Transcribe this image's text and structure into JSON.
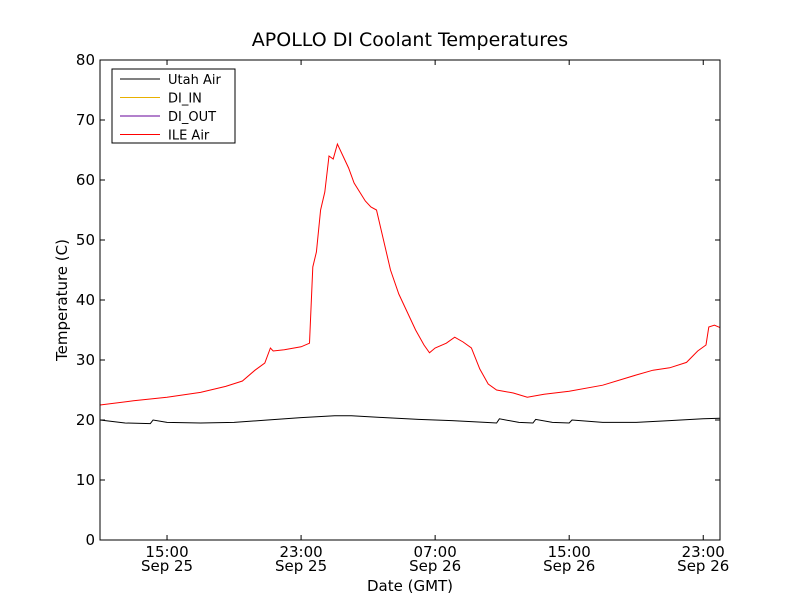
{
  "chart_data": {
    "type": "line",
    "title": "APOLLO DI Coolant Temperatures",
    "xlabel": "Date (GMT)",
    "ylabel": "Temperature (C)",
    "xlim": [
      "2011-09-25 11:00",
      "2011-09-27 00:00"
    ],
    "ylim": [
      0,
      80
    ],
    "grid": false,
    "legend_position": "top-left",
    "y_ticks": [
      0,
      10,
      20,
      30,
      40,
      50,
      60,
      70,
      80
    ],
    "x_ticks": [
      {
        "t": "2011-09-25 15:00",
        "line1": "15:00",
        "line2": "Sep 25"
      },
      {
        "t": "2011-09-25 23:00",
        "line1": "23:00",
        "line2": "Sep 25"
      },
      {
        "t": "2011-09-26 07:00",
        "line1": "07:00",
        "line2": "Sep 26"
      },
      {
        "t": "2011-09-26 15:00",
        "line1": "15:00",
        "line2": "Sep 26"
      },
      {
        "t": "2011-09-26 23:00",
        "line1": "23:00",
        "line2": "Sep 26"
      }
    ],
    "series": [
      {
        "name": "Utah Air",
        "color": "#000000",
        "points": [
          [
            "2011-09-25 11:00",
            20.0
          ],
          [
            "2011-09-25 12:30",
            19.5
          ],
          [
            "2011-09-25 14:00",
            19.4
          ],
          [
            "2011-09-25 14:10",
            20.0
          ],
          [
            "2011-09-25 15:00",
            19.6
          ],
          [
            "2011-09-25 17:00",
            19.5
          ],
          [
            "2011-09-25 19:00",
            19.6
          ],
          [
            "2011-09-25 21:00",
            20.0
          ],
          [
            "2011-09-25 23:00",
            20.4
          ],
          [
            "2011-09-26 01:00",
            20.7
          ],
          [
            "2011-09-26 02:00",
            20.7
          ],
          [
            "2011-09-26 04:00",
            20.4
          ],
          [
            "2011-09-26 06:00",
            20.1
          ],
          [
            "2011-09-26 08:00",
            19.9
          ],
          [
            "2011-09-26 10:00",
            19.6
          ],
          [
            "2011-09-26 10:40",
            19.5
          ],
          [
            "2011-09-26 10:50",
            20.2
          ],
          [
            "2011-09-26 12:00",
            19.6
          ],
          [
            "2011-09-26 12:50",
            19.5
          ],
          [
            "2011-09-26 13:00",
            20.1
          ],
          [
            "2011-09-26 14:00",
            19.6
          ],
          [
            "2011-09-26 15:00",
            19.5
          ],
          [
            "2011-09-26 15:10",
            20.0
          ],
          [
            "2011-09-26 17:00",
            19.6
          ],
          [
            "2011-09-26 19:00",
            19.6
          ],
          [
            "2011-09-26 21:00",
            19.9
          ],
          [
            "2011-09-26 23:00",
            20.2
          ],
          [
            "2011-09-27 00:00",
            20.3
          ]
        ]
      },
      {
        "name": "DI_IN",
        "color": "#e8b000",
        "points": []
      },
      {
        "name": "DI_OUT",
        "color": "#660099",
        "points": []
      },
      {
        "name": "ILE Air",
        "color": "#ff0000",
        "points": [
          [
            "2011-09-25 11:00",
            22.5
          ],
          [
            "2011-09-25 13:00",
            23.2
          ],
          [
            "2011-09-25 15:00",
            23.8
          ],
          [
            "2011-09-25 17:00",
            24.6
          ],
          [
            "2011-09-25 18:30",
            25.6
          ],
          [
            "2011-09-25 19:30",
            26.5
          ],
          [
            "2011-09-25 20:15",
            28.3
          ],
          [
            "2011-09-25 20:50",
            29.5
          ],
          [
            "2011-09-25 21:10",
            32.0
          ],
          [
            "2011-09-25 21:20",
            31.5
          ],
          [
            "2011-09-25 22:00",
            31.7
          ],
          [
            "2011-09-25 23:00",
            32.2
          ],
          [
            "2011-09-25 23:30",
            32.8
          ],
          [
            "2011-09-25 23:42",
            45.5
          ],
          [
            "2011-09-25 23:55",
            48.0
          ],
          [
            "2011-09-26 00:10",
            55.0
          ],
          [
            "2011-09-26 00:25",
            58.0
          ],
          [
            "2011-09-26 00:40",
            64.0
          ],
          [
            "2011-09-26 00:55",
            63.5
          ],
          [
            "2011-09-26 01:10",
            66.0
          ],
          [
            "2011-09-26 01:30",
            64.0
          ],
          [
            "2011-09-26 01:50",
            62.0
          ],
          [
            "2011-09-26 02:10",
            59.5
          ],
          [
            "2011-09-26 02:30",
            58.0
          ],
          [
            "2011-09-26 02:50",
            56.5
          ],
          [
            "2011-09-26 03:10",
            55.5
          ],
          [
            "2011-09-26 03:30",
            55.0
          ],
          [
            "2011-09-26 03:50",
            51.0
          ],
          [
            "2011-09-26 04:20",
            45.0
          ],
          [
            "2011-09-26 04:50",
            41.0
          ],
          [
            "2011-09-26 05:20",
            38.0
          ],
          [
            "2011-09-26 05:50",
            35.0
          ],
          [
            "2011-09-26 06:20",
            32.5
          ],
          [
            "2011-09-26 06:40",
            31.2
          ],
          [
            "2011-09-26 07:00",
            32.0
          ],
          [
            "2011-09-26 07:40",
            32.8
          ],
          [
            "2011-09-26 08:10",
            33.8
          ],
          [
            "2011-09-26 08:40",
            33.0
          ],
          [
            "2011-09-26 09:10",
            32.0
          ],
          [
            "2011-09-26 09:40",
            28.5
          ],
          [
            "2011-09-26 10:10",
            26.0
          ],
          [
            "2011-09-26 10:40",
            25.0
          ],
          [
            "2011-09-26 11:40",
            24.5
          ],
          [
            "2011-09-26 12:30",
            23.8
          ],
          [
            "2011-09-26 13:30",
            24.3
          ],
          [
            "2011-09-26 15:00",
            24.8
          ],
          [
            "2011-09-26 17:00",
            25.8
          ],
          [
            "2011-09-26 19:00",
            27.5
          ],
          [
            "2011-09-26 20:00",
            28.3
          ],
          [
            "2011-09-26 21:00",
            28.7
          ],
          [
            "2011-09-26 22:00",
            29.6
          ],
          [
            "2011-09-26 22:40",
            31.5
          ],
          [
            "2011-09-26 23:10",
            32.5
          ],
          [
            "2011-09-26 23:20",
            35.5
          ],
          [
            "2011-09-26 23:40",
            35.8
          ],
          [
            "2011-09-27 00:00",
            35.4
          ]
        ]
      }
    ]
  }
}
